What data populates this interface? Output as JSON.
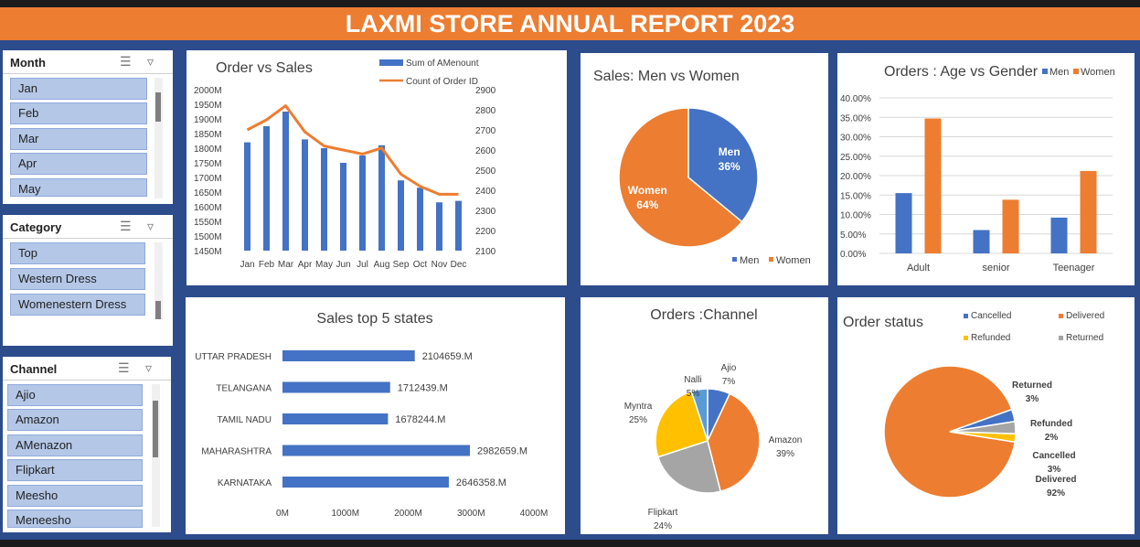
{
  "title": "LAXMI STORE ANNUAL REPORT 2023",
  "slicers": [
    {
      "name": "Month",
      "items": [
        "Jan",
        "Feb",
        "Mar",
        "Apr",
        "May"
      ]
    },
    {
      "name": "Category",
      "items": [
        "Top",
        "Western Dress",
        "Womenestern Dress"
      ]
    },
    {
      "name": "Channel",
      "items": [
        "Ajio",
        "Amazon",
        "AMenazon",
        "Flipkart",
        "Meesho",
        "Meneesho"
      ]
    }
  ],
  "chart_data": [
    {
      "id": "order_vs_sales",
      "type": "bar",
      "title": "Order vs Sales",
      "categories": [
        "Jan",
        "Feb",
        "Mar",
        "Apr",
        "May",
        "Jun",
        "Jul",
        "Aug",
        "Sep",
        "Oct",
        "Nov",
        "Dec"
      ],
      "series": [
        {
          "name": "Sum of AMenount",
          "type": "bar",
          "axis": "left",
          "color": "#4472c4",
          "values": [
            1820,
            1875,
            1925,
            1830,
            1800,
            1750,
            1775,
            1810,
            1690,
            1665,
            1615,
            1620
          ]
        },
        {
          "name": "Count of Order ID",
          "type": "line",
          "axis": "right",
          "color": "#ed7d31",
          "values": [
            2700,
            2750,
            2820,
            2690,
            2620,
            2600,
            2580,
            2610,
            2480,
            2420,
            2380,
            2380
          ]
        }
      ],
      "left_ticks": [
        "2000M",
        "1950M",
        "1900M",
        "1850M",
        "1800M",
        "1750M",
        "1700M",
        "1650M",
        "1600M",
        "1550M",
        "1500M",
        "1450M"
      ],
      "right_ticks": [
        "2900",
        "2800",
        "2700",
        "2600",
        "2500",
        "2400",
        "2300",
        "2200",
        "2100"
      ],
      "left_range": [
        1450,
        2000
      ],
      "right_range": [
        2100,
        2900
      ]
    },
    {
      "id": "sales_men_women",
      "type": "pie",
      "title": "Sales: Men vs Women",
      "labels": [
        "Men",
        "Women"
      ],
      "values": [
        36,
        64
      ],
      "value_labels": [
        "36%",
        "64%"
      ],
      "colors": [
        "#4472c4",
        "#ed7d31"
      ],
      "legend": [
        "Men",
        "Women"
      ]
    },
    {
      "id": "age_vs_gender",
      "type": "bar",
      "title": "Orders : Age vs Gender",
      "categories": [
        "Adult",
        "senior",
        "Teenager"
      ],
      "series": [
        {
          "name": "Men",
          "color": "#4472c4",
          "values": [
            15.5,
            6,
            9.2
          ]
        },
        {
          "name": "Women",
          "color": "#ed7d31",
          "values": [
            34.7,
            13.8,
            21.2
          ]
        }
      ],
      "ticks": [
        "40.00%",
        "35.00%",
        "30.00%",
        "25.00%",
        "20.00%",
        "15.00%",
        "10.00%",
        "5.00%",
        "0.00%"
      ],
      "ylim": [
        0,
        40
      ]
    },
    {
      "id": "top5_states",
      "type": "bar",
      "orientation": "horizontal",
      "title": "Sales top 5 states",
      "categories": [
        "UTTAR PRADESH",
        "TELANGANA",
        "TAMIL NADU",
        "MAHARASHTRA",
        "KARNATAKA"
      ],
      "values": [
        2104659,
        1712439,
        1678244,
        2982659,
        2646358
      ],
      "value_labels": [
        "2104659.M",
        "1712439.M",
        "1678244.M",
        "2982659.M",
        "2646358.M"
      ],
      "ticks": [
        "0M",
        "1000M",
        "2000M",
        "3000M",
        "4000M"
      ],
      "xlim": [
        0,
        4000000
      ],
      "color": "#4472c4"
    },
    {
      "id": "orders_channel",
      "type": "pie",
      "title": "Orders :Channel",
      "labels": [
        "Ajio",
        "Amazon",
        "Flipkart",
        "Myntra",
        "Nalli"
      ],
      "values": [
        7,
        39,
        24,
        25,
        5
      ],
      "value_labels": [
        "7%",
        "39%",
        "24%",
        "25%",
        "5%"
      ],
      "colors": [
        "#4472c4",
        "#ed7d31",
        "#a5a5a5",
        "#ffc000",
        "#5b9bd5"
      ]
    },
    {
      "id": "order_status",
      "type": "pie",
      "title": "Order status",
      "labels": [
        "Delivered",
        "Cancelled",
        "Returned",
        "Refunded"
      ],
      "values": [
        92,
        3,
        3,
        2
      ],
      "label_texts": [
        "Delivered",
        "Cancelled",
        "Returned",
        "Refunded"
      ],
      "value_labels": [
        "92%",
        "3%",
        "3%",
        "2%"
      ],
      "colors": [
        "#ed7d31",
        "#4472c4",
        "#a5a5a5",
        "#ffc000"
      ],
      "legend": [
        "Cancelled",
        "Delivered",
        "Refunded",
        "Returned"
      ]
    }
  ]
}
